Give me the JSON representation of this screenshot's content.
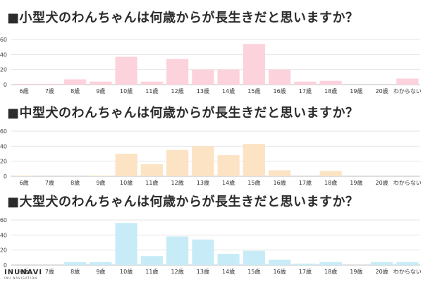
{
  "chart_data": [
    {
      "type": "bar",
      "title": "■小型犬のわんちゃんは何歳からが長生きだと思いますか？",
      "categories": [
        "6歳",
        "7歳",
        "8歳",
        "9歳",
        "10歳",
        "11歳",
        "12歳",
        "13歳",
        "14歳",
        "15歳",
        "16歳",
        "17歳",
        "18歳",
        "19歳",
        "20歳",
        "わからない"
      ],
      "values": [
        1,
        1,
        7,
        4,
        37,
        4,
        34,
        20,
        20,
        54,
        20,
        4,
        5,
        0,
        0,
        8
      ],
      "yticks": [
        "0",
        "20",
        "40",
        "60"
      ],
      "ylim": [
        0,
        60
      ],
      "color": "#fcd2dc",
      "xlabel": "",
      "ylabel": ""
    },
    {
      "type": "bar",
      "title": "■中型犬のわんちゃんは何歳からが長生きだと思いますか？",
      "categories": [
        "6歳",
        "7歳",
        "8歳",
        "9歳",
        "10歳",
        "11歳",
        "12歳",
        "13歳",
        "14歳",
        "15歳",
        "16歳",
        "17歳",
        "18歳",
        "19歳",
        "20歳",
        "わからない"
      ],
      "values": [
        1,
        0,
        0,
        1,
        30,
        16,
        35,
        40,
        28,
        43,
        8,
        0,
        7,
        0,
        0,
        0
      ],
      "yticks": [
        "0",
        "20",
        "40",
        "60"
      ],
      "ylim": [
        0,
        60
      ],
      "color": "#fbe3c4",
      "xlabel": "",
      "ylabel": ""
    },
    {
      "type": "bar",
      "title": "■大型犬のわんちゃんは何歳からが長生きだと思いますか？",
      "categories": [
        "6歳",
        "7歳",
        "8歳",
        "9歳",
        "10歳",
        "11歳",
        "12歳",
        "13歳",
        "14歳",
        "15歳",
        "16歳",
        "17歳",
        "18歳",
        "19歳",
        "20歳",
        "わからない"
      ],
      "values": [
        0,
        0,
        4,
        4,
        56,
        12,
        38,
        34,
        15,
        19,
        7,
        2,
        4,
        0,
        4,
        4
      ],
      "yticks": [
        "0",
        "20",
        "40",
        "60"
      ],
      "ylim": [
        0,
        60
      ],
      "color": "#c7ecf7",
      "xlabel": "",
      "ylabel": ""
    }
  ],
  "logo": {
    "name": "INUNAVI",
    "sub": "INU NAVIGATION"
  }
}
